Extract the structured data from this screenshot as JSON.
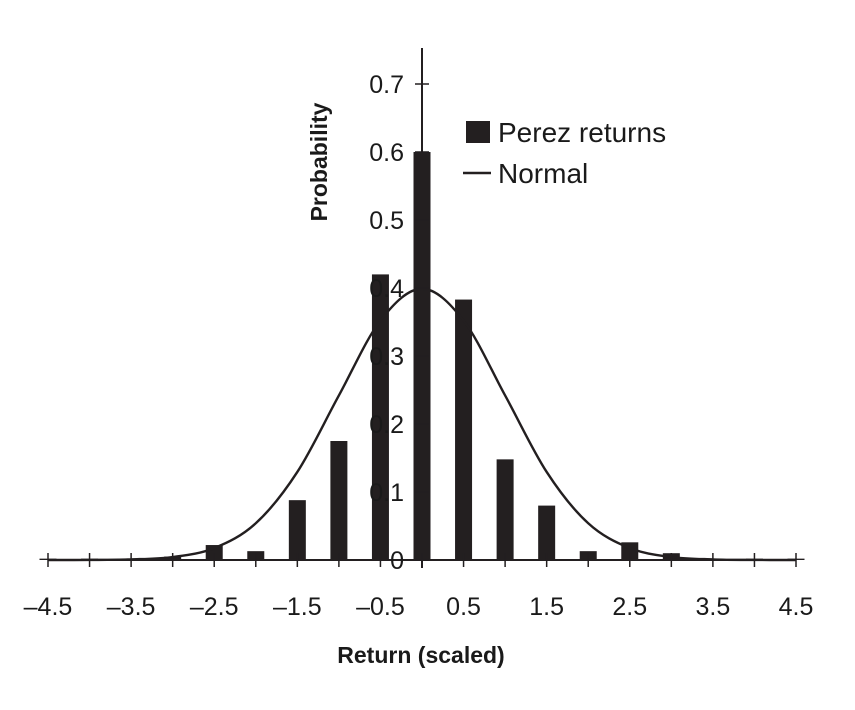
{
  "chart_data": {
    "type": "bar",
    "xlabel": "Return (scaled)",
    "ylabel": "Probability",
    "xlim": [
      -4.5,
      4.5
    ],
    "ylim": [
      0,
      0.75
    ],
    "x_ticks": [
      -4.5,
      -4,
      -3.5,
      -3,
      -2.5,
      -2,
      -1.5,
      -1,
      -0.5,
      0,
      0.5,
      1,
      1.5,
      2,
      2.5,
      3,
      3.5,
      4,
      4.5
    ],
    "x_tick_labels": [
      "–4.5",
      "–3.5",
      "–2.5",
      "–1.5",
      "–0.5",
      "0.5",
      "1.5",
      "2.5",
      "3.5",
      "4.5"
    ],
    "y_ticks": [
      0,
      0.1,
      0.2,
      0.3,
      0.4,
      0.5,
      0.6,
      0.7
    ],
    "y_tick_labels": [
      "0",
      "0.1",
      "0.2",
      "0.3",
      "0.4",
      "0.5",
      "0.6",
      "0.7"
    ],
    "legend": {
      "position": "top-right"
    },
    "series": [
      {
        "name": "Perez returns",
        "kind": "bar",
        "color": "#231f20",
        "x": [
          -4.5,
          -4,
          -3.5,
          -3,
          -2.5,
          -2,
          -1.5,
          -1,
          -0.5,
          0,
          0.5,
          1,
          1.5,
          2,
          2.5,
          3,
          3.5,
          4,
          4.5
        ],
        "values": [
          0.002,
          0.002,
          0.002,
          0.005,
          0.022,
          0.013,
          0.088,
          0.175,
          0.42,
          0.6,
          0.383,
          0.148,
          0.08,
          0.013,
          0.026,
          0.01,
          0.002,
          0.002,
          0.002
        ]
      },
      {
        "name": "Normal",
        "kind": "line",
        "color": "#231f20",
        "x": [
          -4.5,
          -4,
          -3.5,
          -3,
          -2.5,
          -2,
          -1.5,
          -1,
          -0.5,
          0,
          0.5,
          1,
          1.5,
          2,
          2.5,
          3,
          3.5,
          4,
          4.5
        ],
        "values": [
          0.0,
          0.0001,
          0.0009,
          0.0044,
          0.0175,
          0.054,
          0.1295,
          0.242,
          0.3521,
          0.3989,
          0.3521,
          0.242,
          0.1295,
          0.054,
          0.0175,
          0.0044,
          0.0009,
          0.0001,
          0.0
        ]
      }
    ]
  }
}
